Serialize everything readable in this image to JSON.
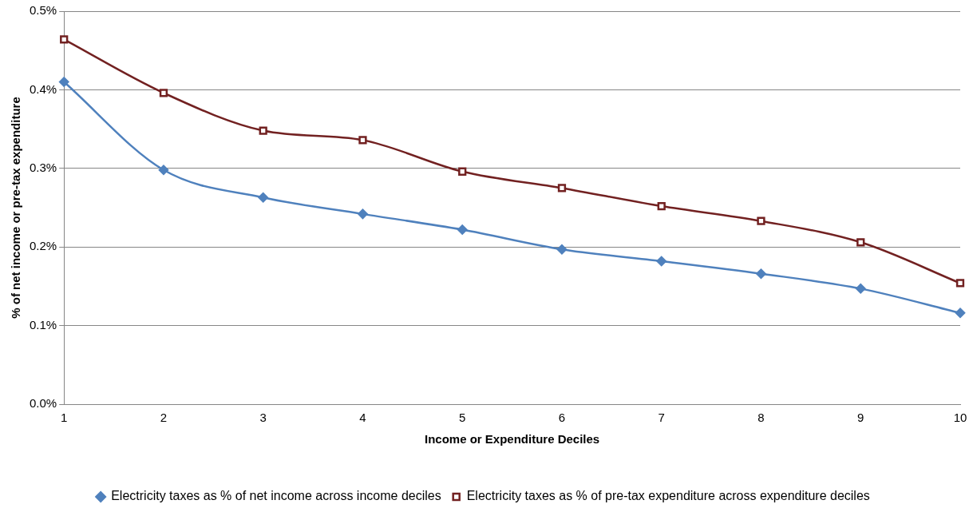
{
  "chart_data": {
    "type": "line",
    "xlabel": "Income or Expenditure Deciles",
    "ylabel": "% of net income or pre-tax expenditure",
    "categories": [
      "1",
      "2",
      "3",
      "4",
      "5",
      "6",
      "7",
      "8",
      "9",
      "10"
    ],
    "series": [
      {
        "name": "Electricity taxes as % of net income across income deciles",
        "color": "#4f81bd",
        "marker": "diamond",
        "values": [
          0.41,
          0.298,
          0.263,
          0.242,
          0.222,
          0.197,
          0.182,
          0.166,
          0.147,
          0.116
        ]
      },
      {
        "name": "Electricity taxes as % of pre-tax expenditure across expenditure deciles",
        "color": "#722121",
        "marker": "square",
        "values": [
          0.464,
          0.396,
          0.348,
          0.336,
          0.296,
          0.275,
          0.252,
          0.233,
          0.206,
          0.154
        ]
      }
    ],
    "ylim": [
      0,
      0.5
    ],
    "yticks": [
      {
        "value": 0,
        "label": "0.0%"
      },
      {
        "value": 0.1,
        "label": "0.1%"
      },
      {
        "value": 0.2,
        "label": "0.2%"
      },
      {
        "value": 0.3,
        "label": "0.3%"
      },
      {
        "value": 0.4,
        "label": "0.4%"
      },
      {
        "value": 0.5,
        "label": "0.5%"
      }
    ],
    "grid": "y",
    "legend": "bottom",
    "line_style": "solid"
  }
}
